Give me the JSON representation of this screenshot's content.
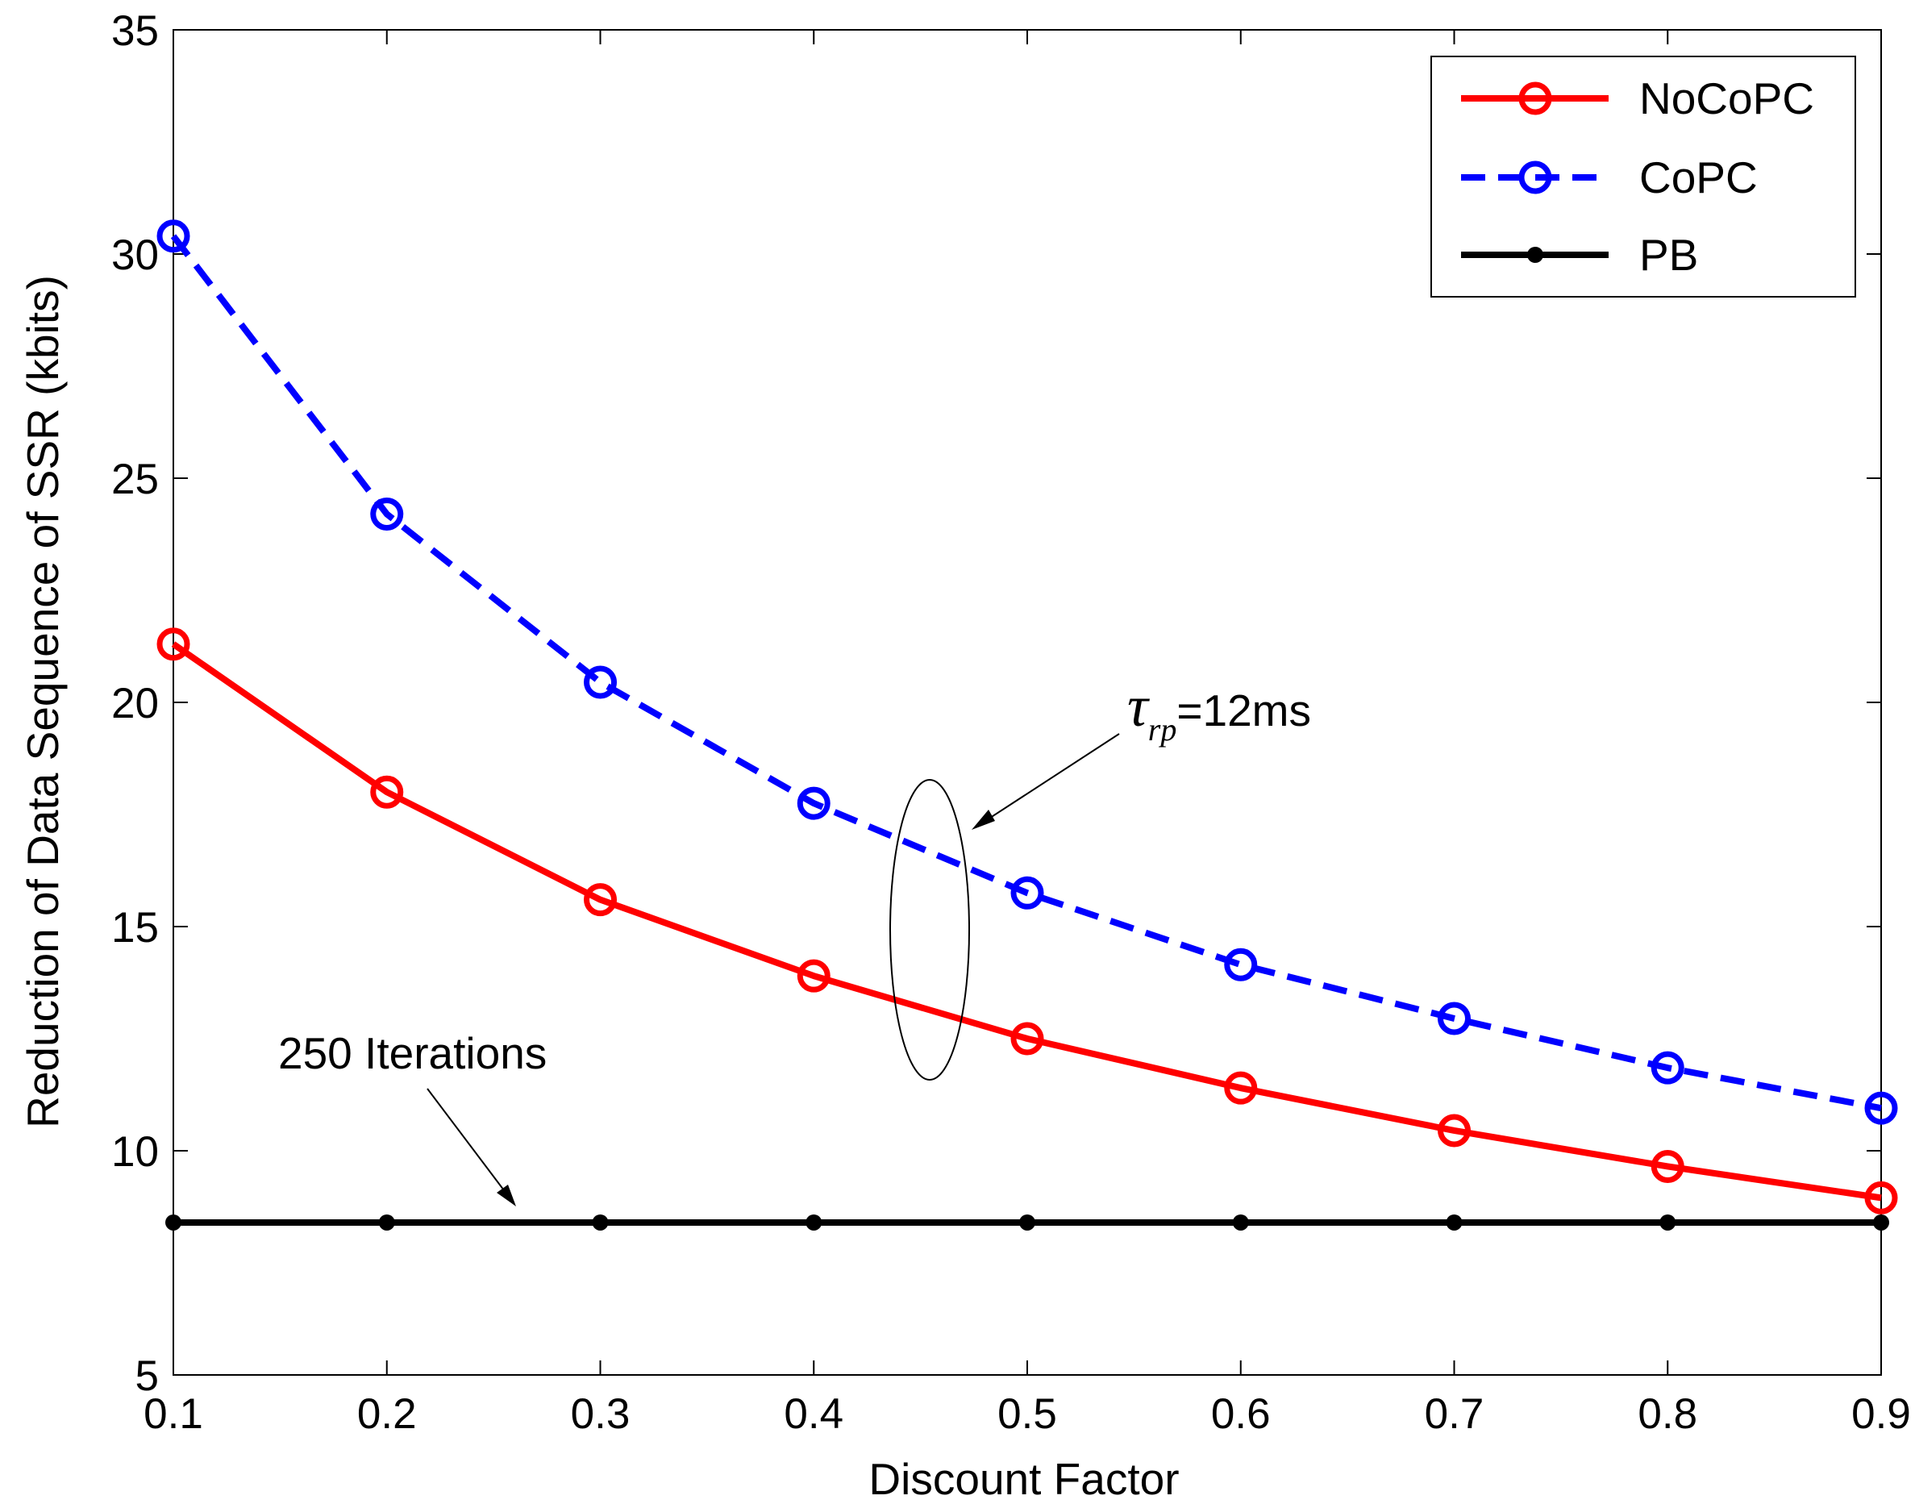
{
  "chart_data": {
    "type": "line",
    "title": "",
    "xlabel": "Discount Factor",
    "ylabel": "Reduction of Data Sequence of SSR (kbits)",
    "xlim": [
      0.1,
      0.9
    ],
    "ylim": [
      5,
      35
    ],
    "xticks": [
      0.1,
      0.2,
      0.3,
      0.4,
      0.5,
      0.6,
      0.7,
      0.8,
      0.9
    ],
    "xtick_labels": [
      "0.1",
      "0.2",
      "0.3",
      "0.4",
      "0.5",
      "0.6",
      "0.7",
      "0.8",
      "0.9"
    ],
    "yticks": [
      5,
      10,
      15,
      20,
      25,
      30,
      35
    ],
    "ytick_labels": [
      "5",
      "10",
      "15",
      "20",
      "25",
      "30",
      "35"
    ],
    "grid": false,
    "legend_position": "top-right",
    "x": [
      0.1,
      0.2,
      0.3,
      0.4,
      0.5,
      0.6,
      0.7,
      0.8,
      0.9
    ],
    "series": [
      {
        "name": "NoCoPC",
        "color": "#ff0000",
        "line_style": "solid",
        "marker": "open-circle",
        "values": [
          21.3,
          18.0,
          15.6,
          13.9,
          12.5,
          11.4,
          10.45,
          9.65,
          8.95
        ]
      },
      {
        "name": "CoPC",
        "color": "#0000ff",
        "line_style": "dashed",
        "marker": "open-circle",
        "values": [
          30.4,
          24.2,
          20.45,
          17.75,
          15.75,
          14.15,
          12.95,
          11.85,
          10.95
        ]
      },
      {
        "name": "PB",
        "color": "#000000",
        "line_style": "solid",
        "marker": "dot",
        "values": [
          8.4,
          8.4,
          8.4,
          8.4,
          8.4,
          8.4,
          8.4,
          8.4,
          8.4
        ]
      }
    ],
    "annotations": {
      "tau_symbol": "τ",
      "tau_subscript": "rp",
      "tau_value": "=12ms",
      "iterations": "250 Iterations"
    }
  }
}
